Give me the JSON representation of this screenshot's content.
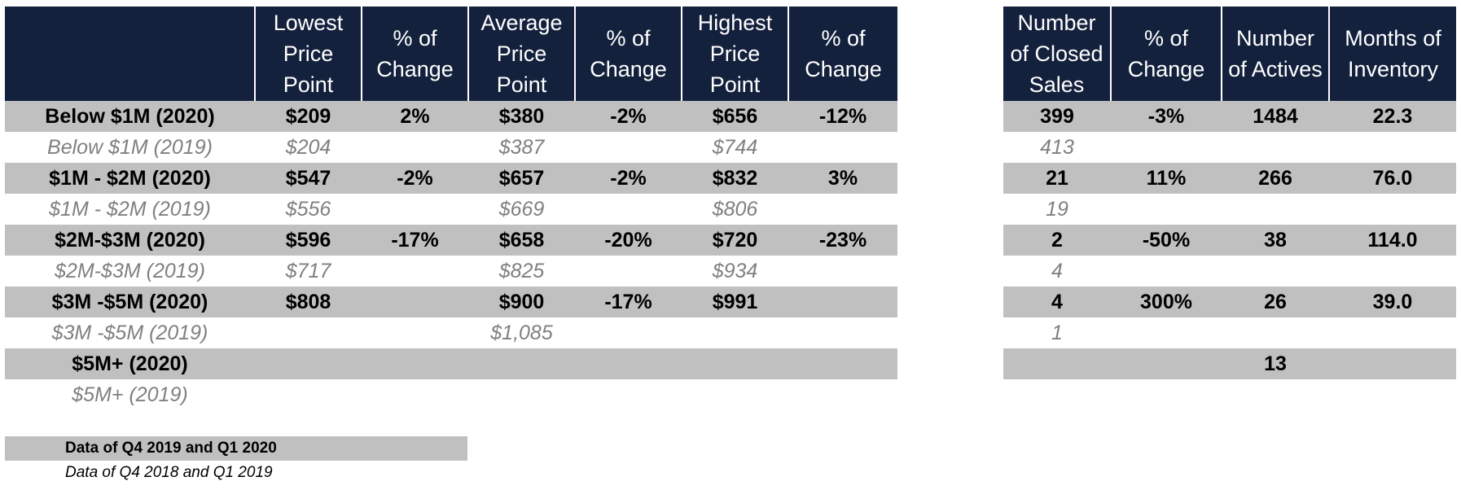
{
  "left_headers": [
    "",
    "Lowest\nPrice\nPoint",
    "% of\nChange",
    "Average\nPrice\nPoint",
    "% of\nChange",
    "Highest\nPrice\nPoint",
    "% of\nChange"
  ],
  "right_headers": [
    "Number\nof Closed\nSales",
    "% of\nChange",
    "Number\nof Actives",
    "Months of\nInventory"
  ],
  "rows": [
    {
      "kind": "cur",
      "label": "Below $1M (2020)",
      "lowest": "$209",
      "lowest_pct": "2%",
      "average": "$380",
      "average_pct": "-2%",
      "highest": "$656",
      "highest_pct": "-12%",
      "closed": "399",
      "closed_pct": "-3%",
      "actives": "1484",
      "months": "22.3"
    },
    {
      "kind": "prev",
      "label": "Below $1M (2019)",
      "lowest": "$204",
      "lowest_pct": "",
      "average": "$387",
      "average_pct": "",
      "highest": "$744",
      "highest_pct": "",
      "closed": "413",
      "closed_pct": "",
      "actives": "",
      "months": ""
    },
    {
      "kind": "cur",
      "label": "$1M - $2M (2020)",
      "lowest": "$547",
      "lowest_pct": "-2%",
      "average": "$657",
      "average_pct": "-2%",
      "highest": "$832",
      "highest_pct": "3%",
      "closed": "21",
      "closed_pct": "11%",
      "actives": "266",
      "months": "76.0"
    },
    {
      "kind": "prev",
      "label": "$1M - $2M (2019)",
      "lowest": "$556",
      "lowest_pct": "",
      "average": "$669",
      "average_pct": "",
      "highest": "$806",
      "highest_pct": "",
      "closed": "19",
      "closed_pct": "",
      "actives": "",
      "months": ""
    },
    {
      "kind": "cur",
      "label": "$2M-$3M (2020)",
      "lowest": "$596",
      "lowest_pct": "-17%",
      "average": "$658",
      "average_pct": "-20%",
      "highest": "$720",
      "highest_pct": "-23%",
      "closed": "2",
      "closed_pct": "-50%",
      "actives": "38",
      "months": "114.0"
    },
    {
      "kind": "prev",
      "label": "$2M-$3M (2019)",
      "lowest": "$717",
      "lowest_pct": "",
      "average": "$825",
      "average_pct": "",
      "highest": "$934",
      "highest_pct": "",
      "closed": "4",
      "closed_pct": "",
      "actives": "",
      "months": ""
    },
    {
      "kind": "cur",
      "label": "$3M -$5M (2020)",
      "lowest": "$808",
      "lowest_pct": "",
      "average": "$900",
      "average_pct": "-17%",
      "highest": "$991",
      "highest_pct": "",
      "closed": "4",
      "closed_pct": "300%",
      "actives": "26",
      "months": "39.0"
    },
    {
      "kind": "prev",
      "label": "$3M -$5M (2019)",
      "lowest": "",
      "lowest_pct": "",
      "average": "$1,085",
      "average_pct": "",
      "highest": "",
      "highest_pct": "",
      "closed": "1",
      "closed_pct": "",
      "actives": "",
      "months": ""
    },
    {
      "kind": "cur",
      "label": "$5M+ (2020)",
      "lowest": "",
      "lowest_pct": "",
      "average": "",
      "average_pct": "",
      "highest": "",
      "highest_pct": "",
      "closed": "",
      "closed_pct": "",
      "actives": "13",
      "months": ""
    },
    {
      "kind": "prev",
      "label": "$5M+ (2019)",
      "lowest": "",
      "lowest_pct": "",
      "average": "",
      "average_pct": "",
      "highest": "",
      "highest_pct": "",
      "closed": "",
      "closed_pct": "",
      "actives": "",
      "months": ""
    }
  ],
  "legend": {
    "current": "Data of Q4 2019 and Q1 2020",
    "previous": "Data of Q4 2018 and Q1 2019"
  },
  "colors": {
    "header_bg": "#14213d",
    "positive": "#3d8b2a",
    "negative": "#e8302a",
    "current_row_bg": "#c0c0c0",
    "previous_text": "#808080"
  }
}
